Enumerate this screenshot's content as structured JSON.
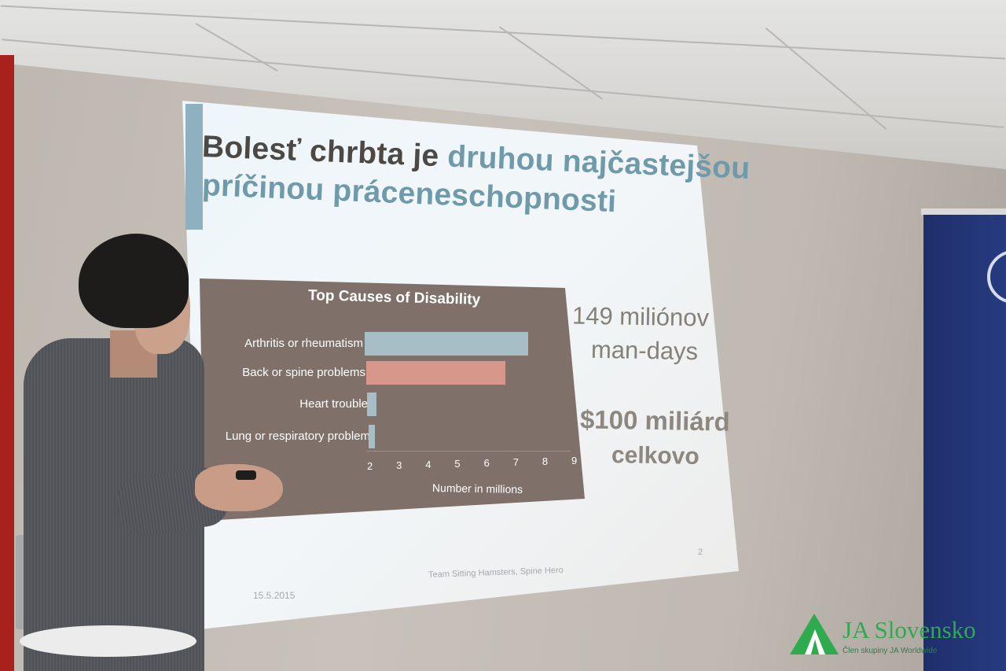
{
  "slide": {
    "title_dark": "Bolesť chrbta je",
    "title_accent_1": "druhou najčastejšou",
    "title_accent_2": "príčinou práceneschopnosti",
    "stat_1_line_1": "149 miliónov",
    "stat_1_line_2": "man-days",
    "stat_2_line_1": "$100 miliárd",
    "stat_2_line_2": "celkovo",
    "footer_date": "15.5.2015",
    "footer_team": "Team Sitting Hamsters, Spine Hero",
    "page_number": "2"
  },
  "chart_data": {
    "type": "bar",
    "orientation": "horizontal",
    "title": "Top Causes of Disability",
    "xlabel": "Number in millions",
    "ylabel": "",
    "xlim": [
      2,
      9
    ],
    "ticks": [
      "2",
      "3",
      "4",
      "5",
      "6",
      "7",
      "8",
      "9"
    ],
    "categories": [
      "Arthritis or rheumatism",
      "Back or spine problems",
      "Heart trouble",
      "Lung or respiratory problem"
    ],
    "values": [
      8.2,
      7.4,
      3.0,
      2.2
    ],
    "colors": [
      "#a7bec6",
      "#d7978a",
      "#a7bec6",
      "#a7bec6"
    ]
  },
  "logo": {
    "name": "JA Slovensko",
    "tagline": "Člen skupiny JA Worldwide",
    "color": "#2eaa4f"
  }
}
